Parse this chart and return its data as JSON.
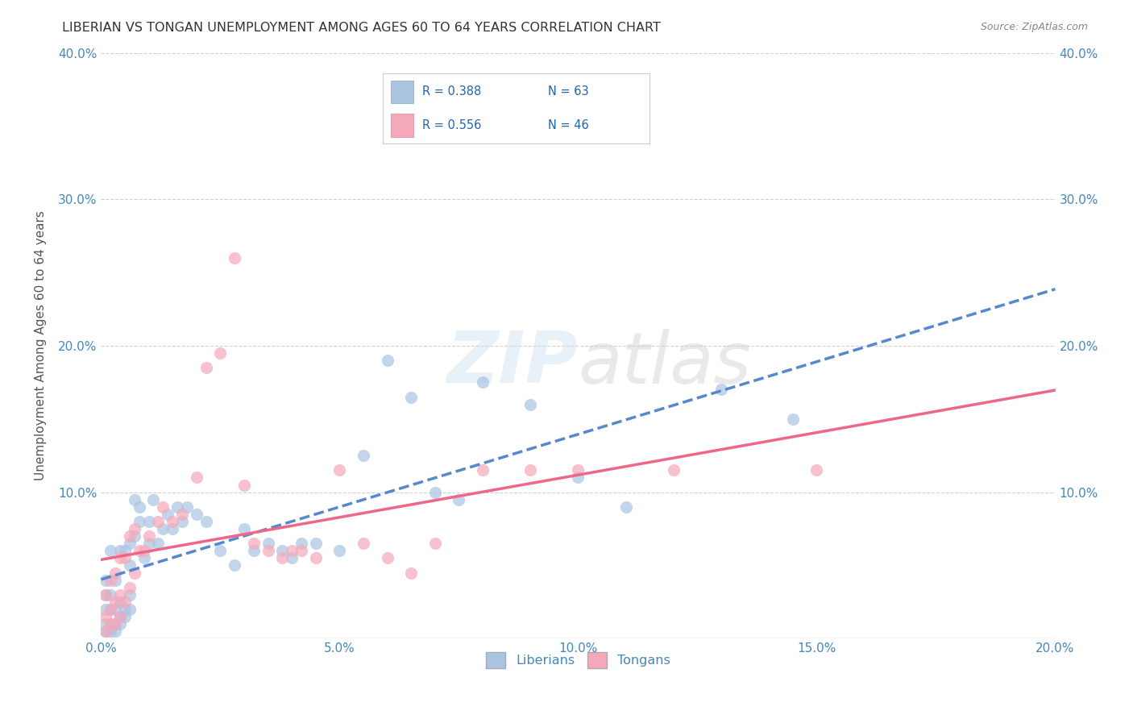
{
  "title": "LIBERIAN VS TONGAN UNEMPLOYMENT AMONG AGES 60 TO 64 YEARS CORRELATION CHART",
  "source": "Source: ZipAtlas.com",
  "ylabel": "Unemployment Among Ages 60 to 64 years",
  "xlim": [
    0.0,
    0.2
  ],
  "ylim": [
    0.0,
    0.4
  ],
  "xticks": [
    0.0,
    0.05,
    0.1,
    0.15,
    0.2
  ],
  "yticks": [
    0.0,
    0.1,
    0.2,
    0.3,
    0.4
  ],
  "xtick_labels": [
    "0.0%",
    "5.0%",
    "10.0%",
    "15.0%",
    "20.0%"
  ],
  "ytick_labels": [
    "",
    "10.0%",
    "20.0%",
    "30.0%",
    "40.0%"
  ],
  "liberian_color": "#aac4e2",
  "tongan_color": "#f5a8ba",
  "liberian_line_color": "#5588cc",
  "tongan_line_color": "#ee6688",
  "R_liberian": 0.388,
  "N_liberian": 63,
  "R_tongan": 0.556,
  "N_tongan": 46,
  "watermark": "ZIPatlas",
  "background_color": "#ffffff",
  "grid_color": "#cccccc",
  "title_color": "#333333",
  "axis_label_color": "#555555",
  "tick_color": "#4488bb",
  "liberian_x": [
    0.001,
    0.001,
    0.001,
    0.001,
    0.001,
    0.002,
    0.002,
    0.002,
    0.002,
    0.002,
    0.003,
    0.003,
    0.003,
    0.003,
    0.004,
    0.004,
    0.004,
    0.004,
    0.005,
    0.005,
    0.005,
    0.006,
    0.006,
    0.006,
    0.006,
    0.007,
    0.007,
    0.008,
    0.008,
    0.009,
    0.01,
    0.01,
    0.011,
    0.012,
    0.013,
    0.014,
    0.015,
    0.016,
    0.017,
    0.018,
    0.02,
    0.022,
    0.025,
    0.028,
    0.03,
    0.032,
    0.035,
    0.038,
    0.04,
    0.042,
    0.045,
    0.05,
    0.055,
    0.06,
    0.065,
    0.07,
    0.075,
    0.08,
    0.09,
    0.1,
    0.11,
    0.13,
    0.145
  ],
  "liberian_y": [
    0.005,
    0.01,
    0.02,
    0.03,
    0.04,
    0.005,
    0.01,
    0.02,
    0.03,
    0.06,
    0.005,
    0.01,
    0.02,
    0.04,
    0.01,
    0.015,
    0.025,
    0.06,
    0.015,
    0.02,
    0.06,
    0.02,
    0.03,
    0.05,
    0.065,
    0.07,
    0.095,
    0.08,
    0.09,
    0.055,
    0.065,
    0.08,
    0.095,
    0.065,
    0.075,
    0.085,
    0.075,
    0.09,
    0.08,
    0.09,
    0.085,
    0.08,
    0.06,
    0.05,
    0.075,
    0.06,
    0.065,
    0.06,
    0.055,
    0.065,
    0.065,
    0.06,
    0.125,
    0.19,
    0.165,
    0.1,
    0.095,
    0.175,
    0.16,
    0.11,
    0.09,
    0.17,
    0.15
  ],
  "tongan_x": [
    0.001,
    0.001,
    0.001,
    0.002,
    0.002,
    0.002,
    0.003,
    0.003,
    0.003,
    0.004,
    0.004,
    0.004,
    0.005,
    0.005,
    0.006,
    0.006,
    0.007,
    0.007,
    0.008,
    0.009,
    0.01,
    0.012,
    0.013,
    0.015,
    0.017,
    0.02,
    0.022,
    0.025,
    0.028,
    0.03,
    0.032,
    0.035,
    0.038,
    0.04,
    0.042,
    0.045,
    0.05,
    0.055,
    0.06,
    0.065,
    0.07,
    0.08,
    0.09,
    0.1,
    0.12,
    0.15
  ],
  "tongan_y": [
    0.005,
    0.015,
    0.03,
    0.01,
    0.02,
    0.04,
    0.01,
    0.025,
    0.045,
    0.015,
    0.03,
    0.055,
    0.025,
    0.055,
    0.035,
    0.07,
    0.045,
    0.075,
    0.06,
    0.06,
    0.07,
    0.08,
    0.09,
    0.08,
    0.085,
    0.11,
    0.185,
    0.195,
    0.26,
    0.105,
    0.065,
    0.06,
    0.055,
    0.06,
    0.06,
    0.055,
    0.115,
    0.065,
    0.055,
    0.045,
    0.065,
    0.115,
    0.115,
    0.115,
    0.115,
    0.115
  ]
}
